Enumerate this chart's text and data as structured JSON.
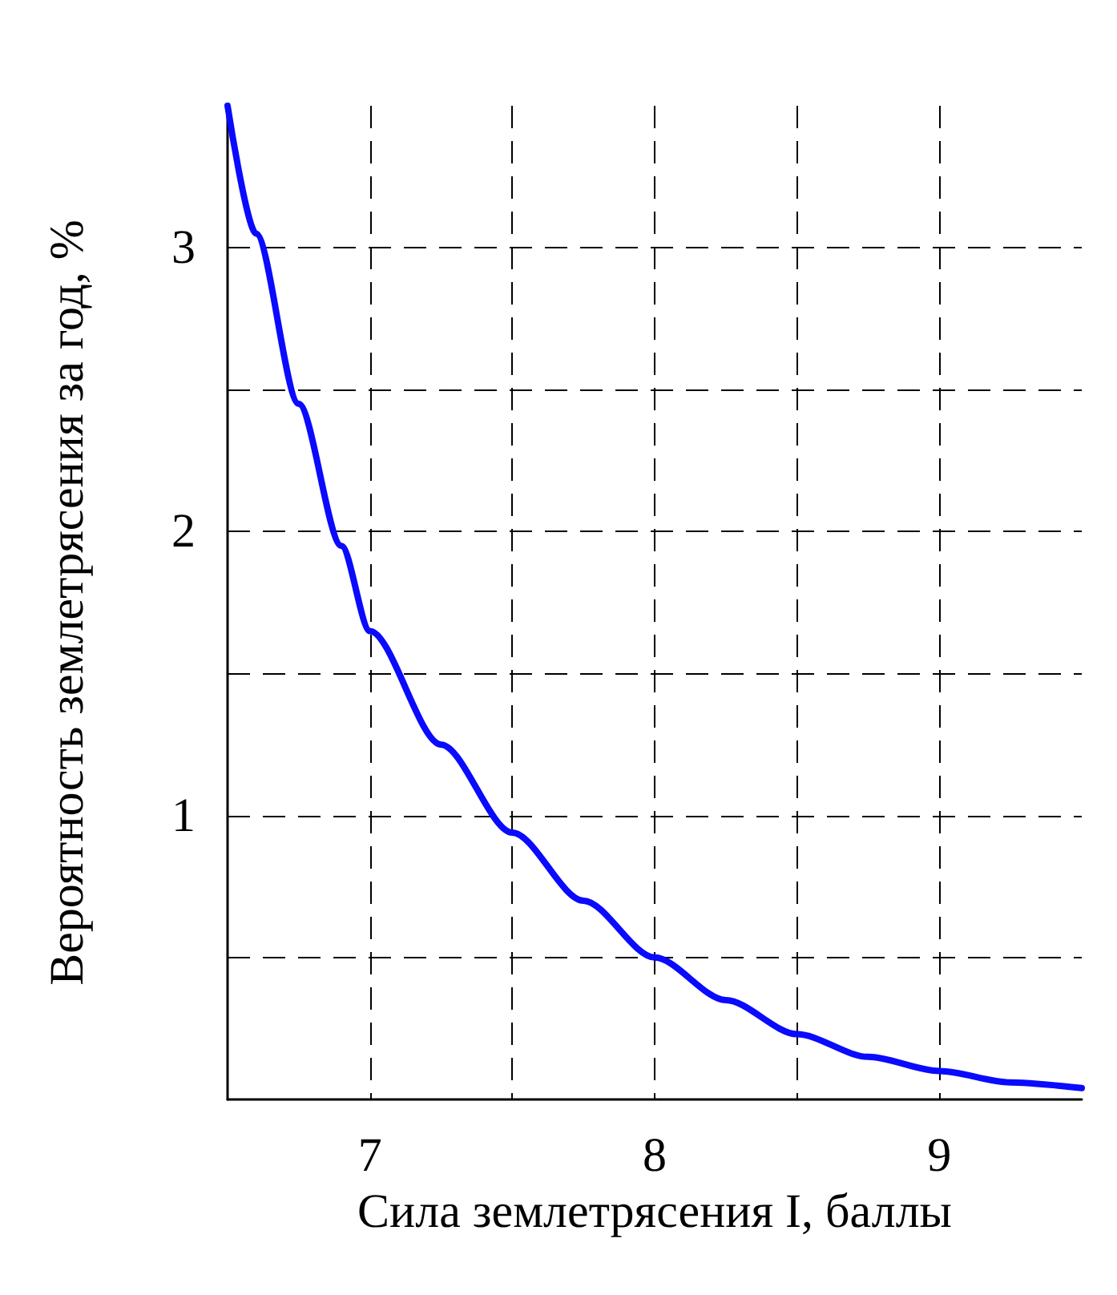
{
  "chart_data": {
    "type": "line",
    "xlabel": "Сила землетрясения I, баллы",
    "ylabel": "Вероятность землетрясения за год, %",
    "x": [
      6.5,
      6.6,
      6.75,
      6.9,
      7,
      7.25,
      7.5,
      7.75,
      8,
      8.25,
      8.5,
      8.75,
      9,
      9.25,
      9.5
    ],
    "series": [
      {
        "color": "#0a0aff",
        "values": [
          3.5,
          3.05,
          2.45,
          1.95,
          1.65,
          1.25,
          0.94,
          0.7,
          0.5,
          0.35,
          0.23,
          0.15,
          0.1,
          0.06,
          0.04
        ]
      }
    ],
    "xlim": [
      6.5,
      9.5
    ],
    "ylim": [
      0,
      3.5
    ],
    "xticks": [
      7,
      {
        "value": 7.5,
        "label": null
      },
      8,
      {
        "value": 8.5,
        "label": null
      },
      9
    ],
    "yticks": [
      {
        "value": 0.5,
        "label": null
      },
      1,
      {
        "value": 1.5,
        "label": null
      },
      2,
      {
        "value": 2.5,
        "label": null
      },
      3
    ],
    "grid": true,
    "line_style": "solid",
    "marker": "none"
  }
}
